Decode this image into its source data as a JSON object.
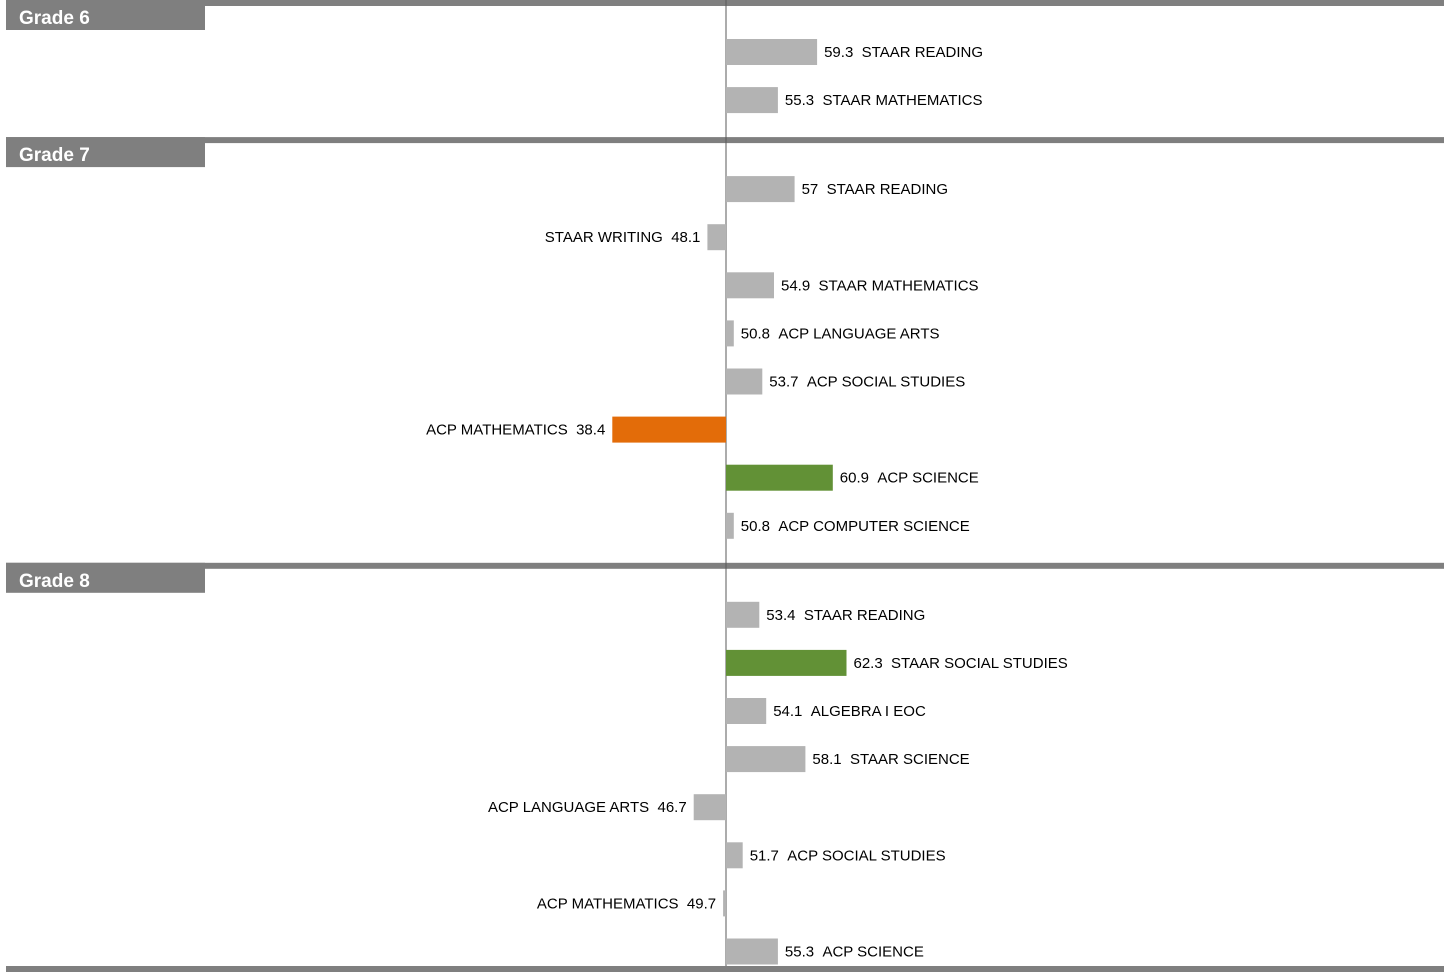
{
  "chart_data": {
    "type": "bar",
    "orientation": "horizontal",
    "baseline": 50,
    "colors": {
      "neutral": "#b3b3b3",
      "low": "#e36c09",
      "high": "#629136",
      "header": "#7f7f7f",
      "axis": "#595959"
    },
    "groups": [
      {
        "title": "Grade 6",
        "bars": [
          {
            "name": "STAAR READING",
            "value": 59.3,
            "value_label": "59.3",
            "color": "neutral"
          },
          {
            "name": "STAAR MATHEMATICS",
            "value": 55.3,
            "value_label": "55.3",
            "color": "neutral"
          }
        ]
      },
      {
        "title": "Grade 7",
        "bars": [
          {
            "name": "STAAR READING",
            "value": 57,
            "value_label": "57",
            "color": "neutral"
          },
          {
            "name": "STAAR WRITING",
            "value": 48.1,
            "value_label": "48.1",
            "color": "neutral"
          },
          {
            "name": "STAAR MATHEMATICS",
            "value": 54.9,
            "value_label": "54.9",
            "color": "neutral"
          },
          {
            "name": "ACP LANGUAGE ARTS",
            "value": 50.8,
            "value_label": "50.8",
            "color": "neutral"
          },
          {
            "name": "ACP SOCIAL STUDIES",
            "value": 53.7,
            "value_label": "53.7",
            "color": "neutral"
          },
          {
            "name": "ACP MATHEMATICS",
            "value": 38.4,
            "value_label": "38.4",
            "color": "low"
          },
          {
            "name": "ACP SCIENCE",
            "value": 60.9,
            "value_label": "60.9",
            "color": "high"
          },
          {
            "name": "ACP COMPUTER SCIENCE",
            "value": 50.8,
            "value_label": "50.8",
            "color": "neutral"
          }
        ]
      },
      {
        "title": "Grade 8",
        "bars": [
          {
            "name": "STAAR READING",
            "value": 53.4,
            "value_label": "53.4",
            "color": "neutral"
          },
          {
            "name": "STAAR SOCIAL STUDIES",
            "value": 62.3,
            "value_label": "62.3",
            "color": "high"
          },
          {
            "name": "ALGEBRA I EOC",
            "value": 54.1,
            "value_label": "54.1",
            "color": "neutral"
          },
          {
            "name": "STAAR SCIENCE",
            "value": 58.1,
            "value_label": "58.1",
            "color": "neutral"
          },
          {
            "name": "ACP LANGUAGE ARTS",
            "value": 46.7,
            "value_label": "46.7",
            "color": "neutral"
          },
          {
            "name": "ACP SOCIAL STUDIES",
            "value": 51.7,
            "value_label": "51.7",
            "color": "neutral"
          },
          {
            "name": "ACP MATHEMATICS",
            "value": 49.7,
            "value_label": "49.7",
            "color": "neutral"
          },
          {
            "name": "ACP SCIENCE",
            "value": 55.3,
            "value_label": "55.3",
            "color": "neutral"
          }
        ]
      }
    ]
  }
}
